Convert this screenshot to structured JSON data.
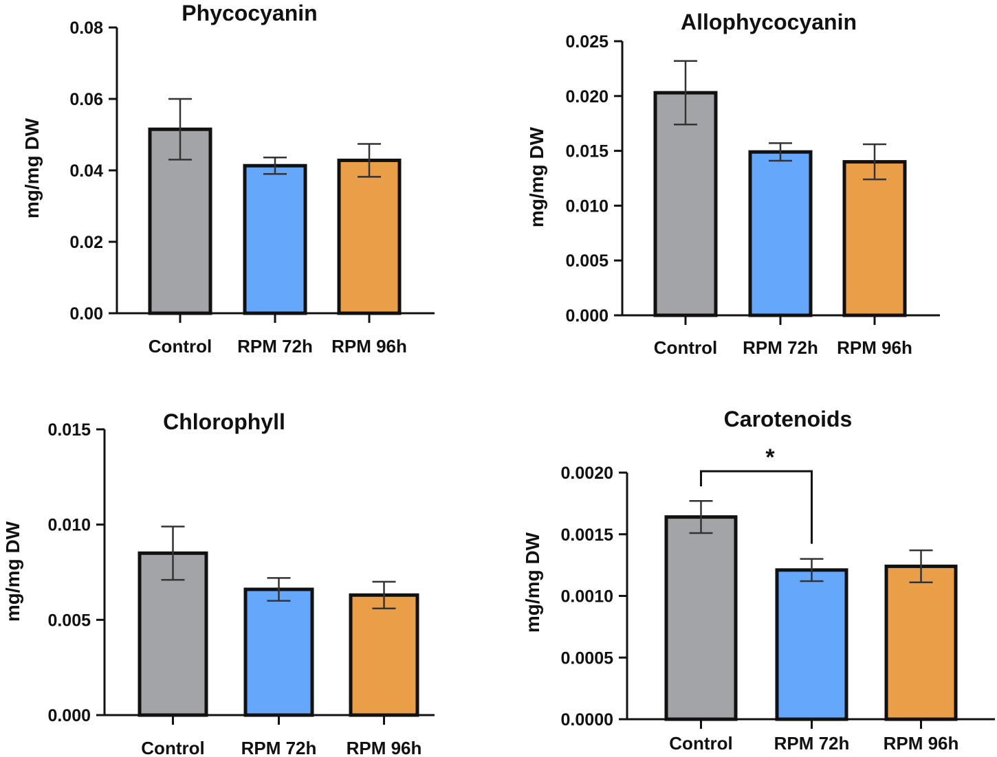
{
  "colors": {
    "control": "#a3a4a7",
    "rpm72": "#65a8fb",
    "rpm96": "#eb9e48",
    "axis": "#111111"
  },
  "chart_data": [
    {
      "type": "bar",
      "title": "Phycocyanin",
      "ylabel": "mg/mg DW",
      "categories": [
        "Control",
        "RPM 72h",
        "RPM 96h"
      ],
      "values": [
        0.0515,
        0.0413,
        0.0428
      ],
      "errors": [
        0.0085,
        0.0023,
        0.0046
      ],
      "ylim": [
        0,
        0.08
      ],
      "yticks": [
        0,
        0.02,
        0.04,
        0.06,
        0.08
      ],
      "ytick_labels": [
        "0.00",
        "0.02",
        "0.04",
        "0.06",
        "0.08"
      ]
    },
    {
      "type": "bar",
      "title": "Allophycocyanin",
      "ylabel": "mg/mg DW",
      "categories": [
        "Control",
        "RPM 72h",
        "RPM 96h"
      ],
      "values": [
        0.0203,
        0.0149,
        0.014
      ],
      "errors": [
        0.0029,
        0.0008,
        0.0016
      ],
      "ylim": [
        0,
        0.025
      ],
      "yticks": [
        0,
        0.005,
        0.01,
        0.015,
        0.02,
        0.025
      ],
      "ytick_labels": [
        "0.000",
        "0.005",
        "0.010",
        "0.015",
        "0.020",
        "0.025"
      ]
    },
    {
      "type": "bar",
      "title": "Chlorophyll",
      "ylabel": "mg/mg DW",
      "categories": [
        "Control",
        "RPM 72h",
        "RPM 96h"
      ],
      "values": [
        0.0085,
        0.0066,
        0.0063
      ],
      "errors": [
        0.0014,
        0.0006,
        0.0007
      ],
      "ylim": [
        0,
        0.015
      ],
      "yticks": [
        0,
        0.005,
        0.01,
        0.015
      ],
      "ytick_labels": [
        "0.000",
        "0.005",
        "0.010",
        "0.015"
      ]
    },
    {
      "type": "bar",
      "title": "Carotenoids",
      "ylabel": "mg/mg DW",
      "categories": [
        "Control",
        "RPM 72h",
        "RPM 96h"
      ],
      "values": [
        0.00164,
        0.00121,
        0.00124
      ],
      "errors": [
        0.00013,
        9e-05,
        0.00013
      ],
      "ylim": [
        0,
        0.002
      ],
      "yticks": [
        0,
        0.0005,
        0.001,
        0.0015,
        0.002
      ],
      "ytick_labels": [
        "0.0000",
        "0.0005",
        "0.0010",
        "0.0015",
        "0.0020"
      ],
      "significance": {
        "from": 0,
        "to": 1,
        "label": "*"
      }
    }
  ]
}
